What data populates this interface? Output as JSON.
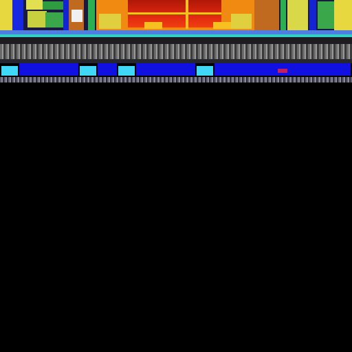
{
  "screen": {
    "description_visible_text": [],
    "upper_scene": {
      "sprites": [
        {
          "kind": "left-building",
          "palette": [
            "#e6e23a",
            "#1030d8",
            "#2a8f3a",
            "#c06a20"
          ]
        },
        {
          "kind": "center-stage",
          "palette": [
            "#f08a10",
            "#d82010",
            "#f5c020",
            "#b01808"
          ]
        },
        {
          "kind": "right-building",
          "palette": [
            "#e6e23a",
            "#1030d8",
            "#2a8f3a",
            "#c06a20"
          ]
        }
      ],
      "floor_stripe_colors": [
        "#4f7de0",
        "#2fd0c8",
        "#7f7f7f",
        "#3a3a3a"
      ]
    },
    "platform_row": {
      "segments": [
        {
          "color": "#40d8f8",
          "kind": "cyan-block"
        },
        {
          "color": "#1010e0",
          "kind": "blue-block"
        },
        {
          "color": "#40d8f8",
          "kind": "cyan-block"
        },
        {
          "color": "#1010e0",
          "kind": "blue-block"
        },
        {
          "color": "#40d8f8",
          "kind": "cyan-block"
        },
        {
          "color": "#1010e0",
          "kind": "blue-block"
        },
        {
          "color": "#40d8f8",
          "kind": "cyan-block"
        },
        {
          "color": "#1010e0",
          "kind": "blue-block"
        }
      ]
    },
    "background_color": "#000000"
  }
}
